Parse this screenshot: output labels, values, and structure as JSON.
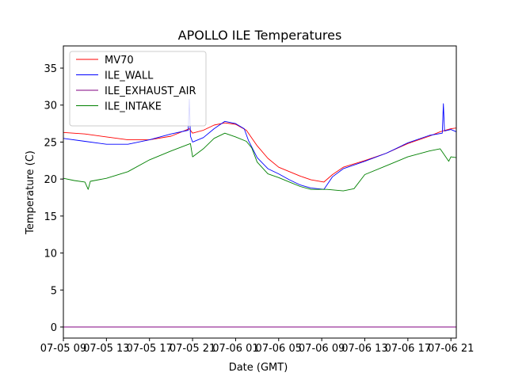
{
  "chart_data": {
    "type": "line",
    "title": "APOLLO ILE Temperatures",
    "xlabel": "Date (GMT)",
    "ylabel": "Temperature (C)",
    "xlim": [
      0,
      36.5
    ],
    "ylim": [
      -1.5,
      38
    ],
    "grid": false,
    "legend_position": "top-left",
    "x_unit": "hours since 07-05 09:00 GMT",
    "x_ticks": [
      {
        "x": 0,
        "label": "07-05 09"
      },
      {
        "x": 4,
        "label": "07-05 13"
      },
      {
        "x": 8,
        "label": "07-05 17"
      },
      {
        "x": 12,
        "label": "07-05 21"
      },
      {
        "x": 16,
        "label": "07-06 01"
      },
      {
        "x": 20,
        "label": "07-06 05"
      },
      {
        "x": 24,
        "label": "07-06 09"
      },
      {
        "x": 28,
        "label": "07-06 13"
      },
      {
        "x": 32,
        "label": "07-06 17"
      },
      {
        "x": 36,
        "label": "07-06 21"
      }
    ],
    "y_ticks": [
      {
        "y": 0,
        "label": "0"
      },
      {
        "y": 5,
        "label": "5"
      },
      {
        "y": 10,
        "label": "10"
      },
      {
        "y": 15,
        "label": "15"
      },
      {
        "y": 20,
        "label": "20"
      },
      {
        "y": 25,
        "label": "25"
      },
      {
        "y": 30,
        "label": "30"
      },
      {
        "y": 35,
        "label": "35"
      }
    ],
    "series": [
      {
        "name": "MV70",
        "color": "#ff0000",
        "x": [
          0,
          2,
          4,
          6,
          8,
          10,
          11.7,
          12,
          13,
          14,
          15,
          16,
          17,
          18,
          19,
          20,
          21,
          22,
          23,
          24.2,
          25,
          26,
          28,
          30,
          32,
          34,
          35,
          36,
          36.5
        ],
        "y": [
          26.3,
          26.1,
          25.7,
          25.3,
          25.3,
          25.8,
          26.8,
          26.2,
          26.6,
          27.3,
          27.6,
          27.4,
          26.6,
          24.5,
          22.8,
          21.6,
          21.0,
          20.4,
          19.9,
          19.6,
          20.6,
          21.6,
          22.5,
          23.5,
          24.8,
          25.8,
          26.4,
          26.8,
          26.9
        ]
      },
      {
        "name": "ILE_WALL",
        "color": "#0000ff",
        "x": [
          0,
          2,
          4,
          6,
          8,
          10,
          11.6,
          11.7,
          11.8,
          12,
          13,
          14,
          15,
          16,
          16.8,
          17.2,
          18,
          19,
          20,
          21,
          22,
          23,
          24.2,
          25,
          26,
          28,
          30,
          32,
          34,
          35.2,
          35.3,
          35.4,
          36,
          36.5
        ],
        "y": [
          25.5,
          25.1,
          24.7,
          24.7,
          25.3,
          26.1,
          26.6,
          30.8,
          25.8,
          25.0,
          25.6,
          26.8,
          27.8,
          27.5,
          26.8,
          25.2,
          22.9,
          21.4,
          20.7,
          19.9,
          19.2,
          18.8,
          18.6,
          20.3,
          21.4,
          22.4,
          23.5,
          24.9,
          25.9,
          26.2,
          30.2,
          26.5,
          26.7,
          26.4
        ]
      },
      {
        "name": "ILE_EXHAUST_AIR",
        "color": "#800080",
        "x": [
          0,
          36.5
        ],
        "y": [
          0,
          0
        ]
      },
      {
        "name": "ILE_INTAKE",
        "color": "#008000",
        "x": [
          0,
          1,
          2,
          2.3,
          2.5,
          4,
          6,
          8,
          10,
          11.8,
          12,
          13,
          14,
          15,
          16,
          17,
          17.5,
          18,
          19,
          20,
          21,
          22,
          23,
          24.5,
          26,
          27,
          28,
          30,
          32,
          34,
          35,
          35.8,
          36,
          36.5
        ],
        "y": [
          20.1,
          19.8,
          19.6,
          18.6,
          19.7,
          20.1,
          21.0,
          22.6,
          23.8,
          24.8,
          23.0,
          24.1,
          25.5,
          26.2,
          25.7,
          25.1,
          24.2,
          22.3,
          20.7,
          20.2,
          19.6,
          19.0,
          18.6,
          18.6,
          18.4,
          18.7,
          20.6,
          21.8,
          23.0,
          23.8,
          24.1,
          22.4,
          23.0,
          22.9
        ]
      }
    ]
  }
}
